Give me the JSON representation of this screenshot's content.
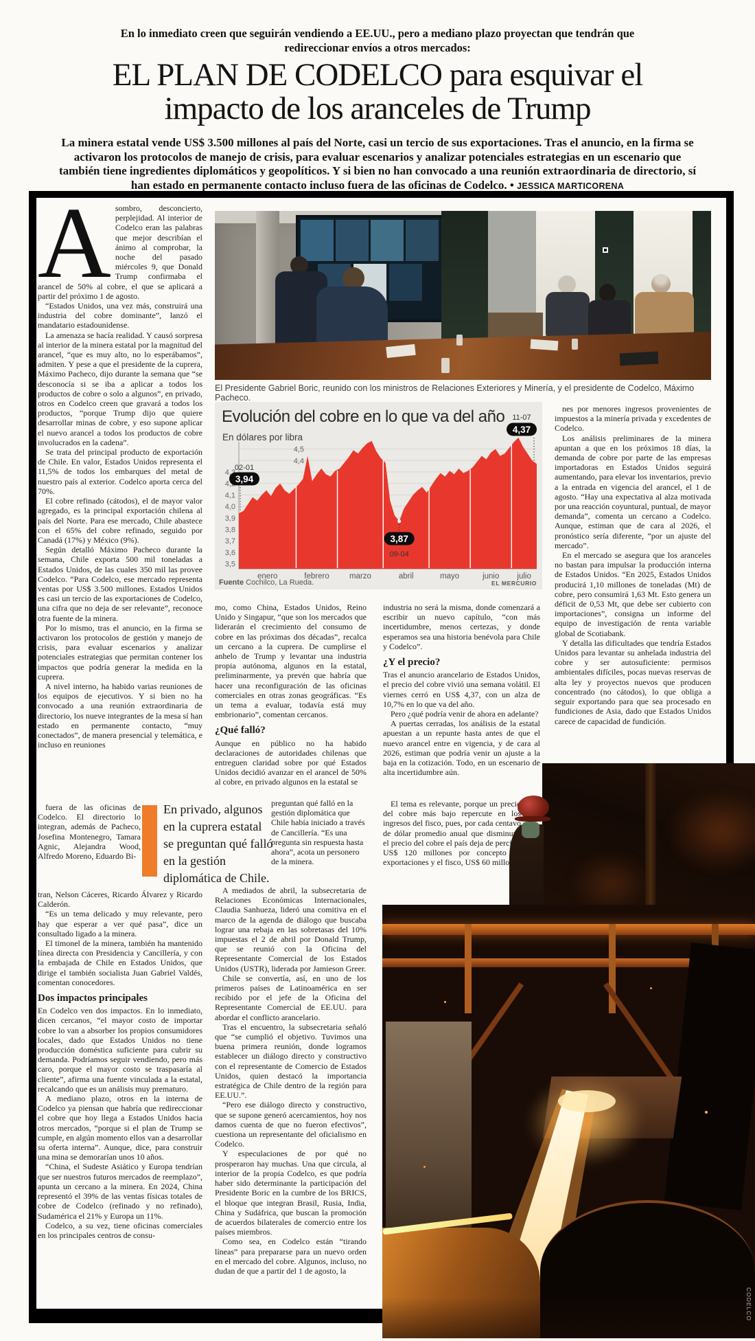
{
  "header": {
    "kicker_line1": "En lo inmediato creen que seguirán vendiendo a EE.UU., pero a mediano plazo proyectan que tendrán que",
    "kicker_line2": "redireccionar envíos a otros mercados:",
    "headline_line1": "EL PLAN DE CODELCO para esquivar el",
    "headline_line2": "impacto de los aranceles de Trump",
    "lede": "La minera estatal vende US$ 3.500 millones al país del Norte, casi un tercio de sus exportaciones. Tras el anuncio, en la firma se activaron los protocolos de manejo de crisis, para evaluar escenarios y analizar potenciales estrategias en un escenario que también tiene ingredientes diplomáticos y geopolíticos. Y si bien no han convocado a una reunión extraordinaria de directorio, sí han estado en permanente contacto incluso fuera de las oficinas de Codelco. •",
    "byline": "JESSICA MARTICORENA"
  },
  "photos": {
    "meeting_caption": "El Presidente Gabriel Boric, reunido con los ministros de Relaciones Exteriores y Minería, y el presidente de Codelco, Máximo Pacheco.",
    "foundry_credit": "CODELCO"
  },
  "pull_quote": {
    "text": "En privado, algunos en la cuprera estatal se preguntan qué falló en la gestión diplomática de Chile.",
    "bar_color": "#ee7c2b"
  },
  "article": {
    "dropcap": "A",
    "col1_top": [
      "sombro, desconcierto, perplejidad. Al interior de Codelco eran las palabras que mejor describían el ánimo al comprobar, la noche del pasado miércoles 9, que Donald Trump confirmaba el arancel de 50% al cobre, el que se aplicará a partir del próximo 1 de agosto.",
      "“Estados Unidos, una vez más, construirá una industria del cobre dominante”, lanzó el mandatario estadounidense.",
      "La amenaza se hacía realidad. Y causó sorpresa al interior de la minera estatal por la magnitud del arancel, “que es muy alto, no lo esperábamos”, admiten. Y pese a que el presidente de la cuprera, Máximo Pacheco, dijo durante la semana que “se desconocía si se iba a aplicar a todos los productos de cobre o solo a algunos”, en privado, otros en Codelco creen que gravará a todos los productos, “porque Trump dijo que quiere desarrollar minas de cobre, y eso supone aplicar el nuevo arancel a todos los productos de cobre involucrados en la cadena”.",
      "Se trata del principal producto de exportación de Chile. En valor, Estados Unidos representa el 11,5% de todos los embarques del metal de nuestro país al exterior. Codelco aporta cerca del 70%.",
      "El cobre refinado (cátodos), el de mayor valor agregado, es la principal exportación chilena al país del Norte. Para ese mercado, Chile abastece con el 65% del cobre refinado, seguido por Canadá (17%) y México (9%).",
      "Según detalló Máximo Pacheco durante la semana, Chile exporta 500 mil toneladas a Estados Unidos, de las cuales 350 mil las provee Codelco. “Para Codelco, ese mercado representa ventas por US$ 3.500 millones. Estados Unidos es casi un tercio de las exportaciones de Codelco, una cifra que no deja de ser relevante”, reconoce otra fuente de la minera.",
      "Por lo mismo, tras el anuncio, en la firma se activaron los protocolos de gestión y manejo de crisis, para evaluar escenarios y analizar potenciales estrategias que permitan contener los impactos que podría generar la medida en la cuprera.",
      "A nivel interno, ha habido varias reuniones de los equipos de ejecutivos. Y si bien no ha convocado a una reunión extraordinaria de directorio, los nueve integrantes de la mesa sí han estado en permanente contacto, “muy conectados”, de manera presencial y telemática, e incluso en reuniones"
    ],
    "col1_narrow": [
      "fuera de las oficinas de Codelco. El directorio lo integran, además de Pacheco, Josefina Montenegro, Tamara Agnic, Alejandra Wood, Alfredo Moreno, Eduardo Bi-"
    ],
    "col1_mid": [
      "tran, Nelson Cáceres, Ricardo Álvarez y Ricardo Calderón.",
      "“Es un tema delicado y muy relevante, pero hay que esperar a ver qué pasa”, dice un consultado ligado a la minera.",
      "El timonel de la minera, también ha mantenido línea directa con Presidencia y Cancillería, y con la embajada de Chile en Estados Unidos, que dirige el también socialista Juan Gabriel Valdés, comentan conocedores."
    ],
    "heading_impactos": "Dos impactos principales",
    "col1_bottom": [
      "En Codelco ven dos impactos. En lo inmediato, dicen cercanos, “el mayor costo de importar cobre lo van a absorber los propios consumidores locales, dado que Estados Unidos no tiene producción doméstica suficiente para cubrir su demanda. Podríamos seguir vendiendo, pero más caro, porque el mayor costo se traspasaría al cliente”, afirma una fuente vinculada a la estatal, recalcando que es un análisis muy prematuro.",
      "A mediano plazo, otros en la interna de Codelco ya piensan que habría que redireccionar el cobre que hoy llega a Estados Unidos hacia otros mercados, “porque si el plan de Trump se cumple, en algún momento ellos van a desarrollar su oferta interna”. Aunque, dice, para construir una mina se demorarían unos 10 años.",
      "“China, el Sudeste Asiático y Europa tendrían que ser nuestros futuros mercados de reemplazo”, apunta un cercano a la minera. En 2024, China representó el 39% de las ventas físicas totales de cobre de Codelco (refinado y no refinado), Sudamérica el 21% y Europa un 11%.",
      "Codelco, a su vez, tiene oficinas comerciales en los principales centros de consu-"
    ],
    "col2_top": [
      "mo, como China, Estados Unidos, Reino Unido y Singapur, “que son los mercados que liderarán el crecimiento del consumo de cobre en las próximas dos décadas”, recalca un cercano a la cuprera. De cumplirse el anhelo de Trump y levantar una industria propia autónoma, algunos en la estatal, preliminarmente, ya prevén que habría que hacer una reconfiguración de las oficinas comerciales en otras zonas geográficas. “Es un tema a evaluar, todavía está muy embrionario”, comentan cercanos."
    ],
    "heading_fallo": "¿Qué falló?",
    "col2_after_heading": [
      "Aunque en público no ha habido declaraciones de autoridades chilenas que entreguen claridad sobre por qué Estados Unidos decidió avanzar en el arancel de 50% al cobre, en privado algunos en la estatal se"
    ],
    "col2_narrow": [
      "preguntan qué falló en la gestión diplomática que Chile había iniciado a través de Cancillería. “Es una pregunta sin respuesta hasta ahora”, acota un personero de la minera."
    ],
    "col2_bottom": [
      "A mediados de abril, la subsecretaria de Relaciones Económicas Internacionales, Claudia Sanhueza, lideró una comitiva en el marco de la agenda de diálogo que buscaba lograr una rebaja en las sobretasas del 10% impuestas el 2 de abril por Donald Trump, que se reunió con la Oficina del Representante Comercial de los Estados Unidos (USTR), liderada por Jamieson Greer.",
      "Chile se convertía, así, en uno de los primeros países de Latinoamérica en ser recibido por el jefe de la Oficina del Representante Comercial de EE.UU. para abordar el conflicto arancelario.",
      "Tras el encuentro, la subsecretaria señaló que “se cumplió el objetivo. Tuvimos una buena primera reunión, donde logramos establecer un diálogo directo y constructivo con el representante de Comercio de Estados Unidos, quien destacó la importancia estratégica de Chile dentro de la región para EE.UU.”.",
      "“Pero ese diálogo directo y constructivo, que se supone generó acercamientos, hoy nos damos cuenta de que no fueron efectivos”, cuestiona un representante del oficialismo en Codelco.",
      "Y especulaciones de por qué no prosperaron hay muchas. Una que circula, al interior de la propia Codelco, es que podría haber sido determinante la participación del Presidente Boric en la cumbre de los BRICS, el bloque que integran Brasil, Rusia, India, China y Sudáfrica, que buscan la promoción de acuerdos bilaterales de comercio entre los países miembros.",
      "Como sea, en Codelco están “tirando líneas” para prepararse para un nuevo orden en el mercado del cobre. Algunos, incluso, no dudan de que a partir del 1 de agosto, la"
    ],
    "col3_top": [
      "industria no será la misma, donde comenzará a escribir un nuevo capítulo, “con más incertidumbre, menos certezas, y donde esperamos sea una historia benévola para Chile y Codelco”."
    ],
    "heading_precio": "¿Y el precio?",
    "col3_mid": [
      "Tras el anuncio arancelario de Estados Unidos, el precio del cobre vivió una semana volátil. El viernes cerró en US$ 4,37, con un alza de 10,7% en lo que va del año.",
      "Pero ¿qué podría venir de ahora en adelante?",
      "A puertas cerradas, los análisis de la estatal apuestan a un repunte hasta antes de que el nuevo arancel entre en vigencia, y de cara al 2026, estiman que podría venir un ajuste a la baja en la cotización. Todo, en un escenario de alta incertidumbre aún."
    ],
    "col3_narrow": [
      "El tema es relevante, porque un precio del cobre más bajo repercute en los ingresos del fisco, pues, por cada centavo de dólar promedio anual que disminuya el precio del cobre el país deja de percibir US$ 120 millones por concepto de exportaciones y el fisco, US$ 60 millo-"
    ],
    "col4": [
      "nes por menores ingresos provenientes de impuestos a la minería privada y excedentes de Codelco.",
      "Los análisis preliminares de la minera apuntan a que en los próximos 18 días, la demanda de cobre por parte de las empresas importadoras en Estados Unidos seguirá aumentando, para elevar los inventarios, previo a la entrada en vigencia del arancel, el 1 de agosto. “Hay una expectativa al alza motivada por una reacción coyuntural, puntual, de mayor demanda”, comenta un cercano a Codelco. Aunque, estiman que de cara al 2026, el pronóstico sería diferente, “por un ajuste del mercado”.",
      "En el mercado se asegura que los aranceles no bastan para impulsar la producción interna de Estados Unidos. “En 2025, Estados Unidos producirá 1,10 millones de toneladas (Mt) de cobre, pero consumirá 1,63 Mt. Esto genera un déficit de 0,53 Mt, que debe ser cubierto con importaciones”, consigna un informe del equipo de investigación de renta variable global de Scotiabank.",
      "Y detalla las dificultades que tendría Estados Unidos para levantar su anhelada industria del cobre y ser autosuficiente: permisos ambientales difíciles, pocas nuevas reservas de alta ley y proyectos nuevos que producen concentrado (no cátodos), lo que obliga a seguir exportando para que sea procesado en fundiciones de Asia, dado que Estados Unidos carece de capacidad de fundición."
    ]
  },
  "chart_data": {
    "type": "area",
    "title": "Evolución del cobre en lo que va del año",
    "subtitle": "En dólares por libra",
    "categories": [
      "enero",
      "febrero",
      "marzo",
      "abril",
      "mayo",
      "junio",
      "julio"
    ],
    "ylim": [
      3.5,
      4.6
    ],
    "yticks": [
      3.5,
      3.6,
      3.7,
      3.8,
      3.9,
      4.0,
      4.1,
      4.2,
      4.3,
      4.4,
      4.5
    ],
    "values": [
      3.94,
      3.96,
      4.02,
      4.08,
      4.05,
      4.1,
      4.14,
      4.09,
      4.16,
      4.2,
      4.14,
      4.11,
      4.15,
      4.19,
      4.24,
      4.44,
      4.22,
      4.28,
      4.33,
      4.28,
      4.26,
      4.31,
      4.33,
      4.38,
      4.43,
      4.49,
      4.46,
      4.51,
      4.55,
      4.57,
      4.48,
      4.42,
      4.38,
      4.05,
      3.92,
      3.87,
      3.98,
      4.04,
      4.1,
      4.14,
      4.17,
      4.12,
      4.18,
      4.24,
      4.29,
      4.26,
      4.31,
      4.28,
      4.33,
      4.29,
      4.31,
      4.34,
      4.39,
      4.44,
      4.41,
      4.47,
      4.5,
      4.44,
      4.46,
      4.51,
      4.56,
      4.6,
      4.52,
      4.46,
      4.4,
      4.37
    ],
    "month_end_indices": [
      13,
      22,
      32,
      42,
      51,
      60
    ],
    "annotations": [
      {
        "date": "02-01",
        "value": "3,94",
        "anchor": "first"
      },
      {
        "date": "09-04",
        "value": "3,87",
        "anchor": "min"
      },
      {
        "date": "11-07",
        "value": "4,37",
        "anchor": "last"
      }
    ],
    "source_label": "Fuente",
    "source_rest": " Cochilco, La Rueda.",
    "credit": "EL MERCURIO",
    "area_color": "#e8382d",
    "panel_bg": "#ebeae6",
    "legend_position": "none",
    "grid": true
  }
}
